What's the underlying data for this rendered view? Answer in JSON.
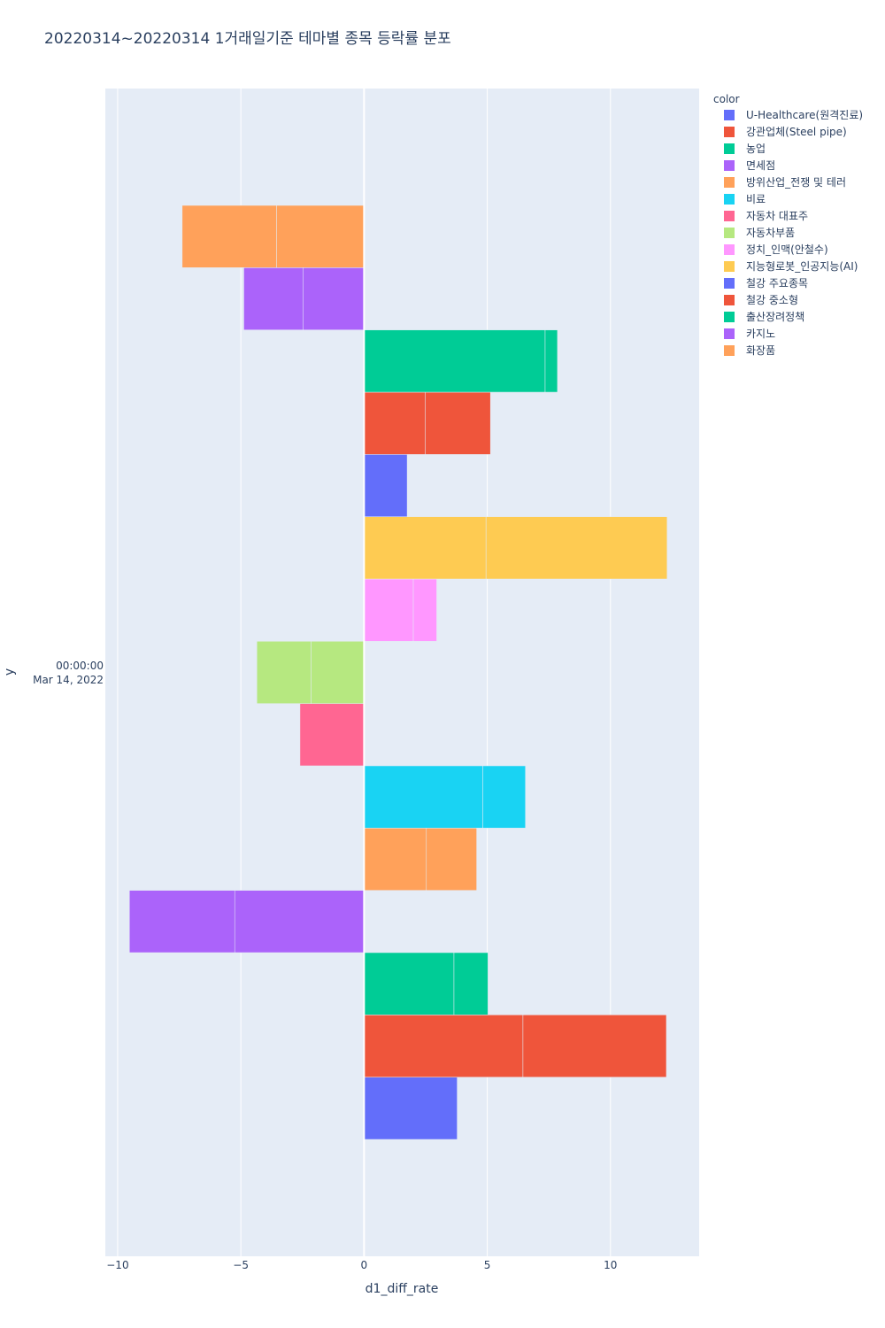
{
  "chart_data": {
    "type": "bar",
    "orientation": "horizontal",
    "barmode": "group-stacked",
    "title": "20220314~20220314 1거래일기준 테마별 종목 등락률 분포",
    "xlabel": "d1_diff_rate",
    "ylabel": "y",
    "y_category": [
      "00:00:00",
      "Mar 14, 2022"
    ],
    "xlim": [
      -10.5,
      13.6
    ],
    "x_ticks": [
      -10,
      -5,
      0,
      5,
      10
    ],
    "x_tick_labels": [
      "−10",
      "−5",
      "0",
      "5",
      "10"
    ],
    "grid": true,
    "legend_title": "color",
    "legend_position": "right",
    "series": [
      {
        "name": "U-Healthcare(원격진료)",
        "color": "#636efa",
        "segments": [
          3.78
        ]
      },
      {
        "name": "강관업체(Steel pipe)",
        "color": "#EF553B",
        "segments": [
          6.45,
          5.82
        ]
      },
      {
        "name": "농업",
        "color": "#00cc96",
        "segments": [
          3.65,
          1.38
        ]
      },
      {
        "name": "면세점",
        "color": "#ab63fa",
        "segments": [
          -5.25,
          -4.27
        ]
      },
      {
        "name": "방위산업_전쟁 및 테러",
        "color": "#FFA15A",
        "segments": [
          2.53,
          2.04
        ]
      },
      {
        "name": "비료",
        "color": "#19d3f3",
        "segments": [
          4.82,
          1.73
        ]
      },
      {
        "name": "자동차 대표주",
        "color": "#FF6692",
        "segments": [
          -2.6
        ]
      },
      {
        "name": "자동차부품",
        "color": "#B6E880",
        "segments": [
          -2.15,
          -2.2
        ]
      },
      {
        "name": "정치_인맥(안철수)",
        "color": "#FF97FF",
        "segments": [
          2.0,
          0.95
        ]
      },
      {
        "name": "지능형로봇_인공지능(AI)",
        "color": "#FECB52",
        "segments": [
          4.95,
          7.35
        ]
      },
      {
        "name": "철강 주요종목",
        "color": "#636efa",
        "segments": [
          1.75
        ]
      },
      {
        "name": "철강 중소형",
        "color": "#EF553B",
        "segments": [
          2.48,
          2.65
        ]
      },
      {
        "name": "출산장려정책",
        "color": "#00cc96",
        "segments": [
          7.35,
          0.5
        ]
      },
      {
        "name": "카지노",
        "color": "#ab63fa",
        "segments": [
          -2.48,
          -2.4
        ]
      },
      {
        "name": "화장품",
        "color": "#FFA15A",
        "segments": [
          -3.55,
          -3.83
        ]
      }
    ]
  }
}
